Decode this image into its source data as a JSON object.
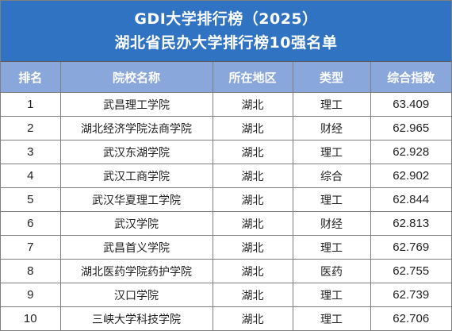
{
  "title": {
    "line1": "GDI大学排行榜（2025）",
    "line2": "湖北省民办大学排行榜10强名单"
  },
  "colors": {
    "title_background": "#2f73c2",
    "header_background": "#8aa7dc",
    "grid_line": "#7f7f7f"
  },
  "table": {
    "headers": [
      "排名",
      "院校名称",
      "所在地区",
      "类型",
      "综合指数"
    ],
    "rows": [
      {
        "rank": "1",
        "name": "武昌理工学院",
        "region": "湖北",
        "type": "理工",
        "score": "63.409"
      },
      {
        "rank": "2",
        "name": "湖北经济学院法商学院",
        "region": "湖北",
        "type": "财经",
        "score": "62.965"
      },
      {
        "rank": "3",
        "name": "武汉东湖学院",
        "region": "湖北",
        "type": "理工",
        "score": "62.928"
      },
      {
        "rank": "4",
        "name": "武汉工商学院",
        "region": "湖北",
        "type": "综合",
        "score": "62.902"
      },
      {
        "rank": "5",
        "name": "武汉华夏理工学院",
        "region": "湖北",
        "type": "理工",
        "score": "62.844"
      },
      {
        "rank": "6",
        "name": "武汉学院",
        "region": "湖北",
        "type": "财经",
        "score": "62.813"
      },
      {
        "rank": "7",
        "name": "武昌首义学院",
        "region": "湖北",
        "type": "理工",
        "score": "62.769"
      },
      {
        "rank": "8",
        "name": "湖北医药学院药护学院",
        "region": "湖北",
        "type": "医药",
        "score": "62.755"
      },
      {
        "rank": "9",
        "name": "汉口学院",
        "region": "湖北",
        "type": "理工",
        "score": "62.739"
      },
      {
        "rank": "10",
        "name": "三峡大学科技学院",
        "region": "湖北",
        "type": "理工",
        "score": "62.706"
      }
    ]
  }
}
